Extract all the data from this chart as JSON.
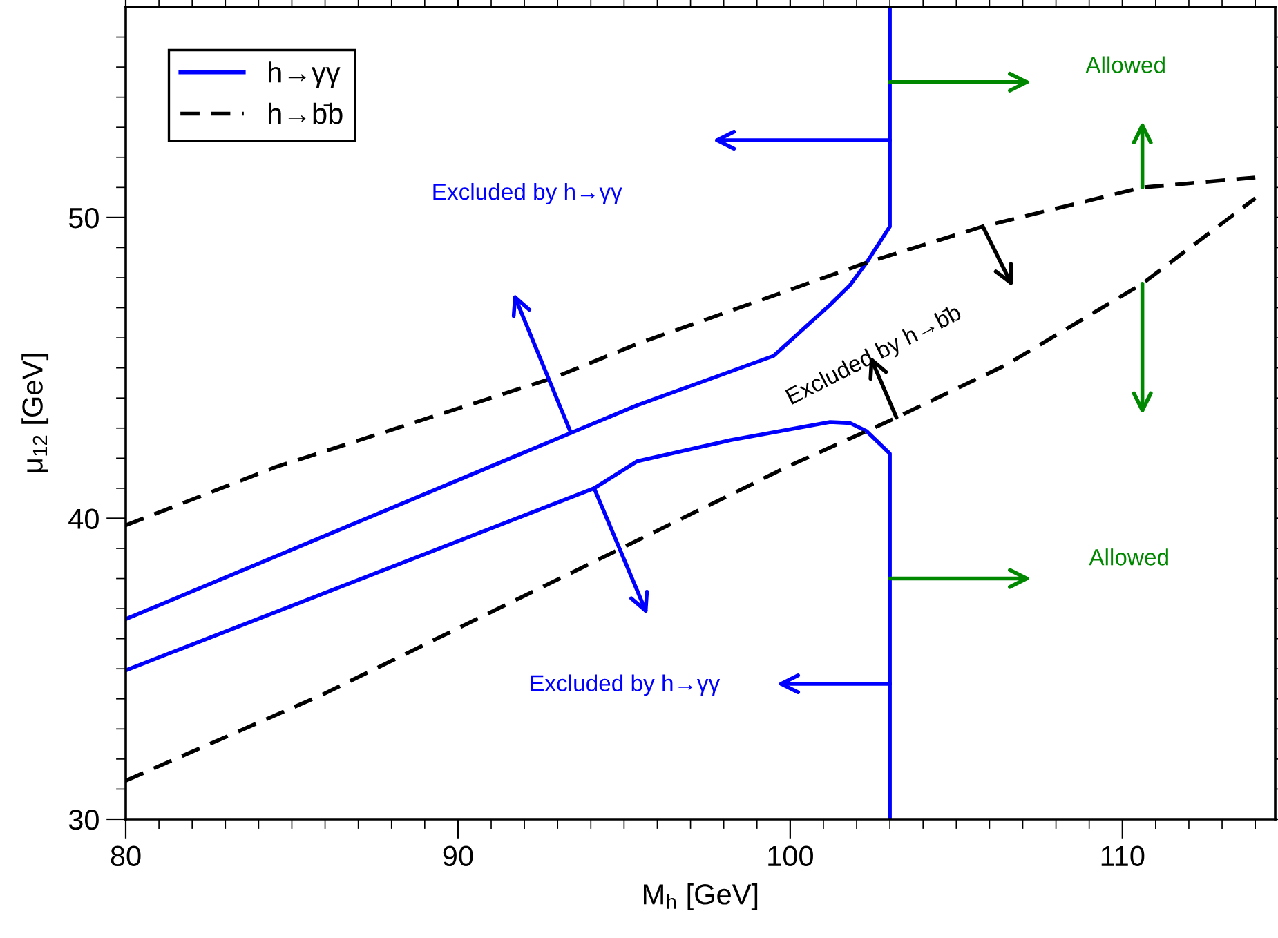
{
  "chart_data": {
    "type": "line",
    "xlabel": "M$_{h}$ [GeV]",
    "ylabel": "μ$_{12}$ [GeV]",
    "xlim": [
      80,
      114.6
    ],
    "ylim": [
      30,
      57
    ],
    "xticks": [
      80,
      {
        "value": 81,
        "label": null
      },
      {
        "value": 82,
        "label": null
      },
      {
        "value": 83,
        "label": null
      },
      {
        "value": 84,
        "label": null
      },
      {
        "value": 85,
        "label": null
      },
      {
        "value": 86,
        "label": null
      },
      {
        "value": 87,
        "label": null
      },
      {
        "value": 88,
        "label": null
      },
      {
        "value": 89,
        "label": null
      },
      90,
      {
        "value": 91,
        "label": null
      },
      {
        "value": 92,
        "label": null
      },
      {
        "value": 93,
        "label": null
      },
      {
        "value": 94,
        "label": null
      },
      {
        "value": 95,
        "label": null
      },
      {
        "value": 96,
        "label": null
      },
      {
        "value": 97,
        "label": null
      },
      {
        "value": 98,
        "label": null
      },
      {
        "value": 99,
        "label": null
      },
      100,
      {
        "value": 101,
        "label": null
      },
      {
        "value": 102,
        "label": null
      },
      {
        "value": 103,
        "label": null
      },
      {
        "value": 104,
        "label": null
      },
      {
        "value": 105,
        "label": null
      },
      {
        "value": 106,
        "label": null
      },
      {
        "value": 107,
        "label": null
      },
      {
        "value": 108,
        "label": null
      },
      {
        "value": 109,
        "label": null
      },
      110,
      {
        "value": 111,
        "label": null
      },
      {
        "value": 112,
        "label": null
      },
      {
        "value": 113,
        "label": null
      },
      {
        "value": 114,
        "label": null
      }
    ],
    "yticks": [
      30,
      {
        "value": 31,
        "label": null
      },
      {
        "value": 32,
        "label": null
      },
      {
        "value": 33,
        "label": null
      },
      {
        "value": 34,
        "label": null
      },
      {
        "value": 35,
        "label": null
      },
      {
        "value": 36,
        "label": null
      },
      {
        "value": 37,
        "label": null
      },
      {
        "value": 38,
        "label": null
      },
      {
        "value": 39,
        "label": null
      },
      40,
      {
        "value": 41,
        "label": null
      },
      {
        "value": 42,
        "label": null
      },
      {
        "value": 43,
        "label": null
      },
      {
        "value": 44,
        "label": null
      },
      {
        "value": 45,
        "label": null
      },
      {
        "value": 46,
        "label": null
      },
      {
        "value": 47,
        "label": null
      },
      {
        "value": 48,
        "label": null
      },
      {
        "value": 49,
        "label": null
      },
      50,
      {
        "value": 51,
        "label": null
      },
      {
        "value": 52,
        "label": null
      },
      {
        "value": 53,
        "label": null
      },
      {
        "value": 54,
        "label": null
      },
      {
        "value": 55,
        "label": null
      },
      {
        "value": 56,
        "label": null
      }
    ],
    "grid": false,
    "legend": "top left",
    "series": [
      {
        "name": "h→γγ",
        "color": "#0000ff",
        "line_style": "solid",
        "x": [
          80,
          93.4,
          95.4,
          99.5,
          101.2,
          101.8,
          102.3,
          103,
          103
        ],
        "values": [
          36.65,
          42.84,
          43.76,
          45.4,
          47.1,
          47.75,
          48.5,
          49.7,
          57
        ]
      },
      {
        "color": "#0000ff",
        "line_style": "solid",
        "x": [
          80,
          94.1,
          95.4,
          98.2,
          101.2,
          101.8,
          102.3,
          103,
          103
        ],
        "values": [
          34.95,
          41.0,
          41.9,
          42.6,
          43.2,
          43.17,
          42.9,
          42.15,
          30
        ]
      },
      {
        "name": "h→b̄b",
        "color": "#000000",
        "line_style": "dashed",
        "x": [
          80,
          84.5,
          92.9,
          95.4,
          102.3,
          105.8,
          110.6,
          114.0
        ],
        "values": [
          39.77,
          41.7,
          44.68,
          45.8,
          48.5,
          49.7,
          51.0,
          51.33
        ]
      },
      {
        "color": "#000000",
        "line_style": "dashed",
        "x": [
          80,
          85.9,
          94.8,
          99.96,
          102.3,
          103.2,
          106.5,
          110.6,
          114.0
        ],
        "values": [
          31.28,
          34.13,
          38.94,
          41.74,
          42.9,
          43.35,
          45.1,
          47.8,
          50.64
        ]
      }
    ],
    "annotations": [
      "Excluded by h→γγ",
      "Excluded by h→γγ",
      "Excluded by h→b̄b",
      "Allowed",
      "Allowed"
    ]
  }
}
